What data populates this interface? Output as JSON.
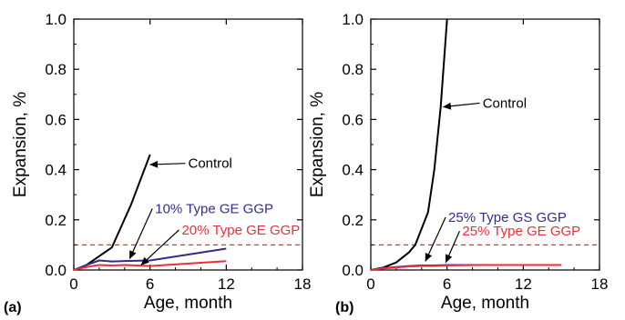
{
  "chart_data": [
    {
      "type": "line",
      "panel_label": "(a)",
      "xlabel": "Age, month",
      "ylabel": "Expansion, %",
      "xlim": [
        0,
        18
      ],
      "ylim": [
        0,
        1.0
      ],
      "xticks": [
        "0",
        "6",
        "12",
        "18"
      ],
      "yticks": [
        "0.0",
        "0.2",
        "0.4",
        "0.6",
        "0.8",
        "1.0"
      ],
      "threshold": 0.1,
      "series": [
        {
          "name": "Control",
          "color": "#000000",
          "x": [
            0,
            1,
            2,
            3,
            4.5,
            6
          ],
          "y": [
            0,
            0.02,
            0.055,
            0.09,
            0.26,
            0.46
          ]
        },
        {
          "name": "10% Type GE GGP",
          "color": "#2e2e8f",
          "x": [
            0,
            1,
            2,
            3,
            4,
            6,
            12
          ],
          "y": [
            0,
            0.02,
            0.038,
            0.034,
            0.036,
            0.038,
            0.085
          ]
        },
        {
          "name": "20% Type GE GGP",
          "color": "#e8303a",
          "x": [
            0,
            1,
            2,
            3,
            4,
            6,
            12
          ],
          "y": [
            0,
            0.012,
            0.02,
            0.018,
            0.02,
            0.016,
            0.035
          ]
        }
      ],
      "annotations": [
        {
          "text": "Control",
          "color": "#000000",
          "tx": 9.0,
          "ty": 0.425,
          "ax": 6.0,
          "ay": 0.42
        },
        {
          "text": "10% Type GE GGP",
          "color": "#2e2e8f",
          "tx": 6.4,
          "ty": 0.245,
          "ax": 4.4,
          "ay": 0.045
        },
        {
          "text": "20% Type GE GGP",
          "color": "#e8303a",
          "tx": 8.5,
          "ty": 0.16,
          "ax": 5.3,
          "ay": 0.02
        }
      ]
    },
    {
      "type": "line",
      "panel_label": "(b)",
      "xlabel": "Age, month",
      "ylabel": "Expansion, %",
      "xlim": [
        0,
        18
      ],
      "ylim": [
        0,
        1.0
      ],
      "xticks": [
        "0",
        "6",
        "12",
        "18"
      ],
      "yticks": [
        "0.0",
        "0.2",
        "0.4",
        "0.6",
        "0.8",
        "1.0"
      ],
      "threshold": 0.1,
      "series": [
        {
          "name": "Control",
          "color": "#000000",
          "x": [
            0,
            1,
            2,
            3,
            3.5,
            4.5,
            5,
            5.5,
            6
          ],
          "y": [
            0,
            0.01,
            0.03,
            0.07,
            0.1,
            0.23,
            0.4,
            0.65,
            1.0
          ]
        },
        {
          "name": "25% Type GS GGP",
          "color": "#2e2e8f",
          "x": [
            0,
            1,
            2,
            3,
            4,
            5,
            6,
            9,
            12,
            15
          ],
          "y": [
            0,
            0.008,
            0.012,
            0.016,
            0.018,
            0.018,
            0.02,
            0.02,
            0.02,
            0.02
          ]
        },
        {
          "name": "25% Type GE GGP",
          "color": "#e8303a",
          "x": [
            0,
            1,
            2,
            3,
            4,
            5,
            6,
            9,
            12,
            15
          ],
          "y": [
            0,
            0.006,
            0.01,
            0.014,
            0.016,
            0.016,
            0.018,
            0.02,
            0.02,
            0.02
          ]
        }
      ],
      "annotations": [
        {
          "text": "Control",
          "color": "#000000",
          "tx": 8.8,
          "ty": 0.665,
          "ax": 5.7,
          "ay": 0.65
        },
        {
          "text": "25% Type GS GGP",
          "color": "#2e2e8f",
          "tx": 6.1,
          "ty": 0.21,
          "ax": 4.3,
          "ay": 0.035
        },
        {
          "text": "25% Type GE GGP",
          "color": "#e8303a",
          "tx": 7.2,
          "ty": 0.155,
          "ax": 5.9,
          "ay": 0.03
        }
      ]
    }
  ]
}
